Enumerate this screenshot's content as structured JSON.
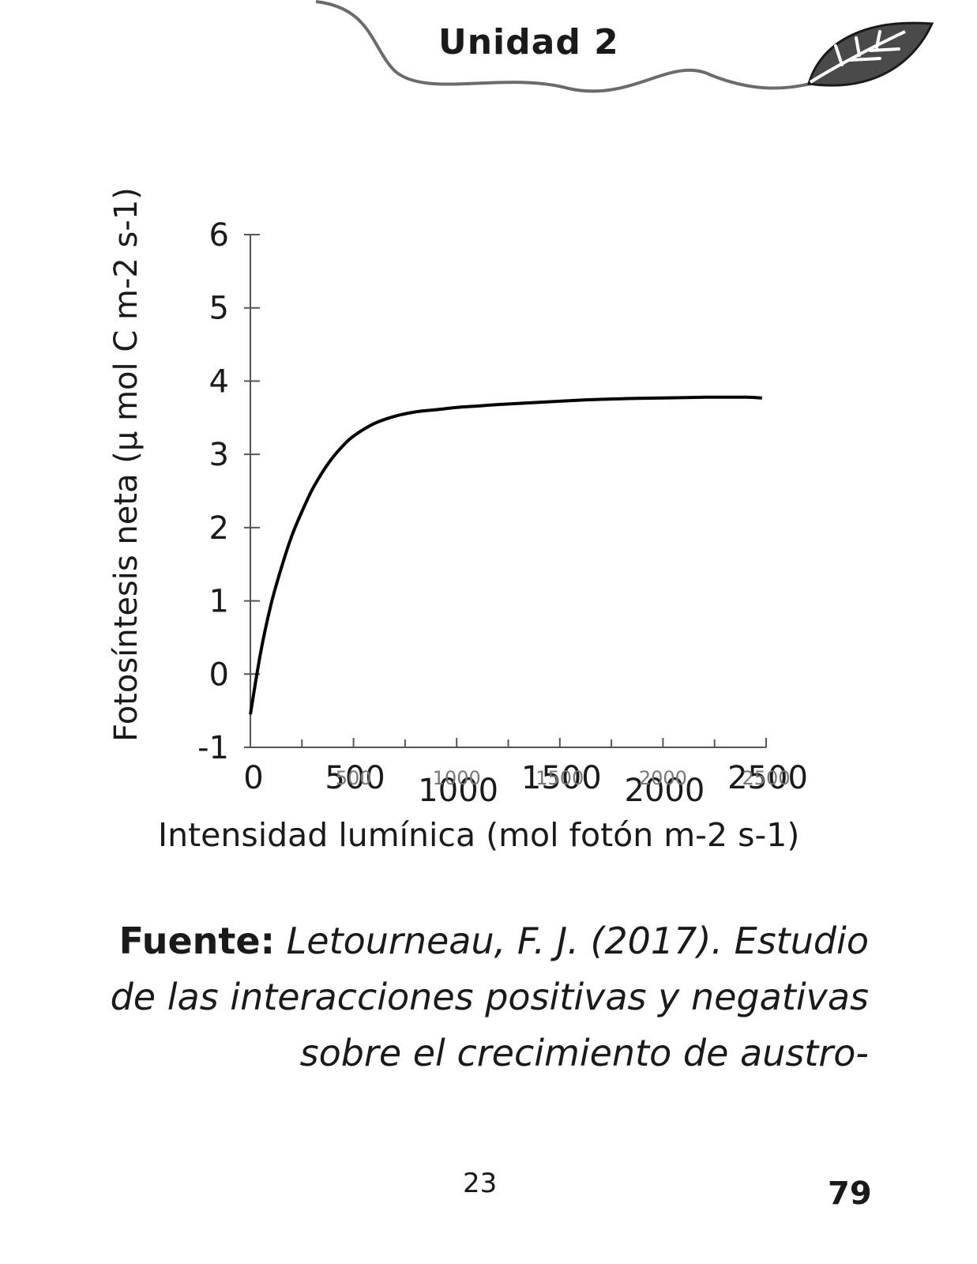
{
  "header": {
    "unit_label": "Unidad  2"
  },
  "chart_data": {
    "type": "line",
    "xlabel": "Intensidad lumínica (mol fotón m-2 s-1)",
    "ylabel": "Fotosíntesis neta (µ mol C m-2 s-1)",
    "xlim": [
      0,
      2500
    ],
    "ylim": [
      -1,
      6
    ],
    "x_ticks": [
      0,
      500,
      1000,
      1500,
      2000,
      2500
    ],
    "x_tick_labels_large": [
      "0",
      "500",
      "1000",
      "1500",
      "2000",
      "2500"
    ],
    "x_tick_labels_small": [
      "500",
      "1000",
      "1500",
      "2000",
      "2500"
    ],
    "y_ticks": [
      -1,
      0,
      1,
      2,
      3,
      4,
      5,
      6
    ],
    "grid": false,
    "series": [
      {
        "x": [
          0,
          50,
          100,
          150,
          200,
          250,
          300,
          350,
          400,
          450,
          500,
          600,
          700,
          800,
          900,
          1000,
          1100,
          1200,
          1400,
          1600,
          1800,
          2000,
          2200,
          2400,
          2480
        ],
        "y": [
          -0.55,
          0.3,
          0.95,
          1.45,
          1.88,
          2.22,
          2.52,
          2.76,
          2.96,
          3.12,
          3.25,
          3.42,
          3.52,
          3.58,
          3.61,
          3.64,
          3.66,
          3.68,
          3.71,
          3.74,
          3.76,
          3.77,
          3.78,
          3.78,
          3.77
        ]
      }
    ]
  },
  "source": {
    "label": "Fuente:",
    "text": " Letourneau, F. J. (2017). Estudio de las interacciones positivas y negativas sobre el crecimiento de austro-"
  },
  "footer": {
    "page_center": "23",
    "page_right": "79"
  }
}
